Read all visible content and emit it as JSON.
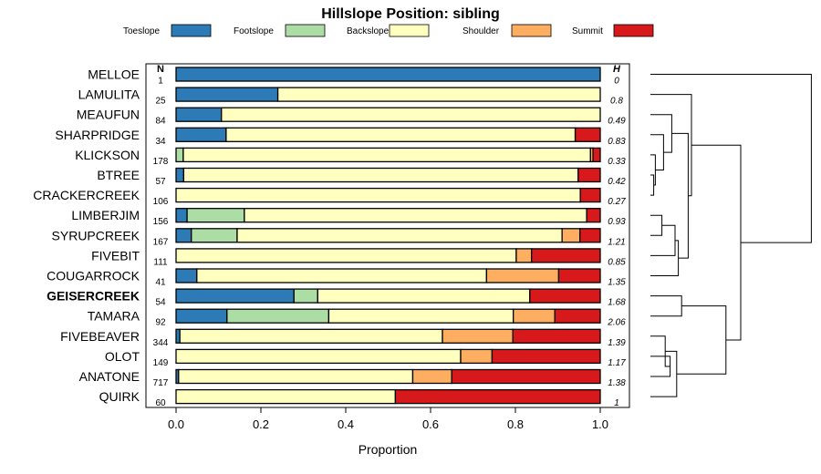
{
  "chart_data": {
    "type": "bar",
    "stacked": true,
    "orientation": "horizontal",
    "title": "Hillslope Position: sibling",
    "xlabel": "Proportion",
    "ylabel": "",
    "xlim": [
      0,
      1
    ],
    "xticks": [
      "0.0",
      "0.2",
      "0.4",
      "0.6",
      "0.8",
      "1.0"
    ],
    "n_header": "N",
    "h_header": "H",
    "legend_position": "top",
    "highlighted_category": "GEISERCREEK",
    "series": [
      {
        "name": "Toeslope",
        "color": "#2c7bb6"
      },
      {
        "name": "Footslope",
        "color": "#abdda4"
      },
      {
        "name": "Backslope",
        "color": "#ffffbf"
      },
      {
        "name": "Shoulder",
        "color": "#fdae61"
      },
      {
        "name": "Summit",
        "color": "#d7191c"
      }
    ],
    "categories": [
      {
        "label": "MELLOE",
        "n": "1",
        "h": "0",
        "values": [
          1.0,
          0.0,
          0.0,
          0.0,
          0.0
        ]
      },
      {
        "label": "LAMULITA",
        "n": "25",
        "h": "0.8",
        "values": [
          0.24,
          0.0,
          0.76,
          0.0,
          0.0
        ]
      },
      {
        "label": "MEAUFUN",
        "n": "84",
        "h": "0.49",
        "values": [
          0.107,
          0.0,
          0.893,
          0.0,
          0.0
        ]
      },
      {
        "label": "SHARPRIDGE",
        "n": "34",
        "h": "0.83",
        "values": [
          0.118,
          0.0,
          0.823,
          0.0,
          0.059
        ]
      },
      {
        "label": "KLICKSON",
        "n": "178",
        "h": "0.33",
        "values": [
          0.0,
          0.017,
          0.96,
          0.006,
          0.017
        ]
      },
      {
        "label": "BTREE",
        "n": "57",
        "h": "0.42",
        "values": [
          0.018,
          0.0,
          0.93,
          0.0,
          0.052
        ]
      },
      {
        "label": "CRACKERCREEK",
        "n": "106",
        "h": "0.27",
        "values": [
          0.0,
          0.0,
          0.953,
          0.0,
          0.047
        ]
      },
      {
        "label": "LIMBERJIM",
        "n": "156",
        "h": "0.93",
        "values": [
          0.026,
          0.135,
          0.807,
          0.0,
          0.032
        ]
      },
      {
        "label": "SYRUPCREEK",
        "n": "167",
        "h": "1.21",
        "values": [
          0.036,
          0.108,
          0.766,
          0.042,
          0.048
        ]
      },
      {
        "label": "FIVEBIT",
        "n": "111",
        "h": "0.85",
        "values": [
          0.0,
          0.0,
          0.802,
          0.036,
          0.162
        ]
      },
      {
        "label": "COUGARROCK",
        "n": "41",
        "h": "1.35",
        "values": [
          0.049,
          0.0,
          0.683,
          0.17,
          0.098
        ]
      },
      {
        "label": "GEISERCREEK",
        "n": "54",
        "h": "1.68",
        "values": [
          0.278,
          0.056,
          0.5,
          0.0,
          0.166
        ]
      },
      {
        "label": "TAMARA",
        "n": "92",
        "h": "2.06",
        "values": [
          0.12,
          0.24,
          0.435,
          0.098,
          0.107
        ]
      },
      {
        "label": "FIVEBEAVER",
        "n": "344",
        "h": "1.39",
        "values": [
          0.009,
          0.0,
          0.619,
          0.166,
          0.206
        ]
      },
      {
        "label": "OLOT",
        "n": "149",
        "h": "1.17",
        "values": [
          0.0,
          0.0,
          0.671,
          0.074,
          0.255
        ]
      },
      {
        "label": "ANATONE",
        "n": "717",
        "h": "1.38",
        "values": [
          0.006,
          0.0,
          0.552,
          0.092,
          0.35
        ]
      },
      {
        "label": "QUIRK",
        "n": "60",
        "h": "1",
        "values": [
          0.0,
          0.0,
          0.517,
          0.0,
          0.483
        ]
      }
    ]
  }
}
